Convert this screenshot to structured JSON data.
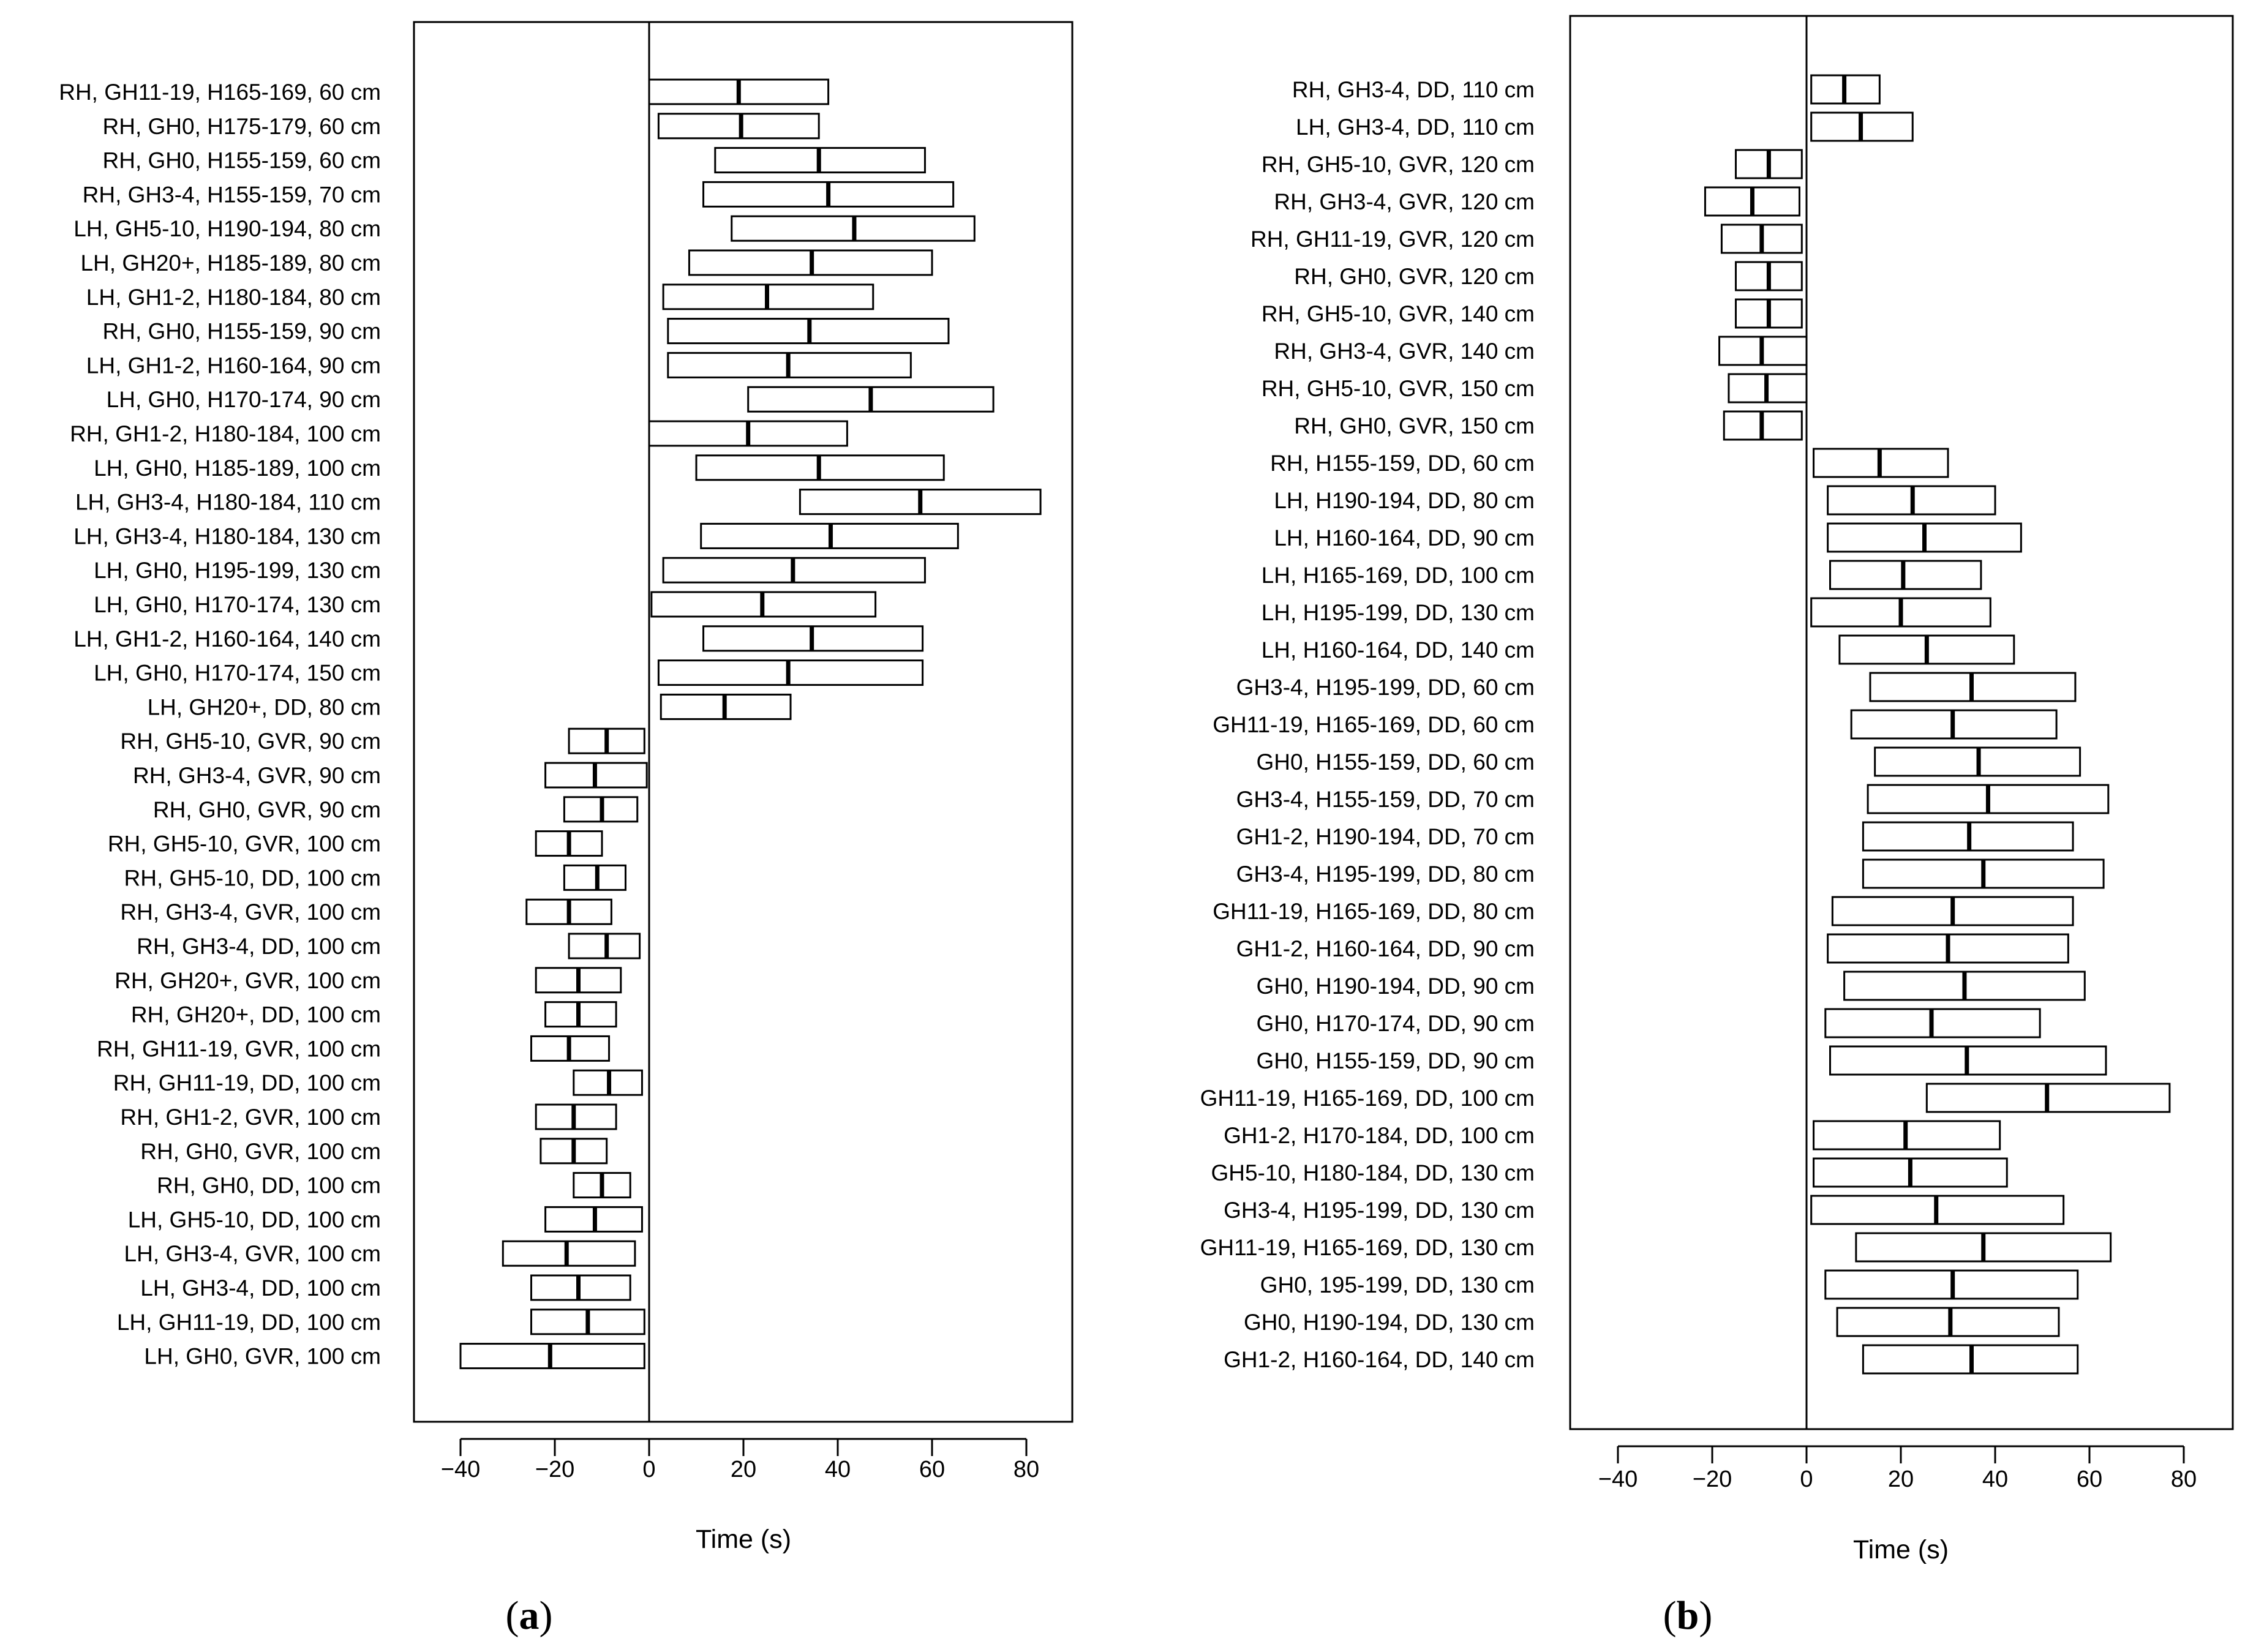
{
  "chart_data": [
    {
      "id": "a",
      "type": "boxplot",
      "panel_label": {
        "open": "(",
        "letter": "a",
        "close": ")"
      },
      "xlabel": "Time (s)",
      "ylabel": "",
      "xlim": [
        -50,
        90
      ],
      "xticks": [
        -40,
        -20,
        0,
        20,
        40,
        60,
        80
      ],
      "reference_line_x": 0,
      "categories": [
        "RH, GH11-19, H165-169, 60 cm",
        "RH, GH0, H175-179, 60 cm",
        "RH, GH0, H155-159, 60 cm",
        "RH, GH3-4, H155-159, 70 cm",
        "LH, GH5-10, H190-194, 80 cm",
        "LH, GH20+, H185-189, 80 cm",
        "LH, GH1-2, H180-184, 80 cm",
        "RH, GH0, H155-159, 90 cm",
        "LH, GH1-2, H160-164, 90 cm",
        "LH, GH0, H170-174, 90 cm",
        "RH, GH1-2, H180-184, 100 cm",
        "LH, GH0, H185-189, 100 cm",
        "LH, GH3-4, H180-184, 110 cm",
        "LH, GH3-4, H180-184, 130 cm",
        "LH, GH0, H195-199, 130 cm",
        "LH, GH0, H170-174, 130 cm",
        "LH, GH1-2, H160-164, 140 cm",
        "LH, GH0, H170-174, 150 cm",
        "LH, GH20+, DD, 80 cm",
        "RH, GH5-10, GVR, 90 cm",
        "RH, GH3-4, GVR, 90 cm",
        "RH, GH0, GVR, 90 cm",
        "RH, GH5-10, GVR, 100 cm",
        "RH, GH5-10, DD, 100 cm",
        "RH, GH3-4, GVR, 100 cm",
        "RH, GH3-4, DD, 100 cm",
        "RH, GH20+, GVR, 100 cm",
        "RH, GH20+, DD, 100 cm",
        "RH, GH11-19, GVR, 100 cm",
        "RH, GH11-19, DD, 100 cm",
        "RH, GH1-2, GVR, 100 cm",
        "RH, GH0, GVR, 100 cm",
        "RH, GH0, DD, 100 cm",
        "LH, GH5-10, DD, 100 cm",
        "LH, GH3-4, GVR, 100 cm",
        "LH, GH3-4, DD, 100 cm",
        "LH, GH11-19, DD, 100 cm",
        "LH, GH0, GVR, 100 cm"
      ],
      "series": [
        {
          "name": "interval",
          "low": [
            0,
            2,
            14,
            11.5,
            17.5,
            8.5,
            3,
            4,
            4,
            21,
            0,
            10,
            32,
            11,
            3,
            0.5,
            11.5,
            2,
            2.5,
            -17,
            -22,
            -18,
            -24,
            -18,
            -26,
            -17,
            -24,
            -22,
            -25,
            -16,
            -24,
            -23,
            -16,
            -22,
            -31,
            -25,
            -25,
            -40
          ],
          "median": [
            19,
            19.5,
            36,
            38,
            43.5,
            34.5,
            25,
            34,
            29.5,
            47,
            21,
            36,
            57.5,
            38.5,
            30.5,
            24,
            34.5,
            29.5,
            16,
            -9,
            -11.5,
            -10,
            -17,
            -11,
            -17,
            -9,
            -15,
            -15,
            -17,
            -8.5,
            -16,
            -16,
            -10,
            -11.5,
            -17.5,
            -15,
            -13,
            -21
          ],
          "high": [
            38,
            36,
            58.5,
            64.5,
            69,
            60,
            47.5,
            63.5,
            55.5,
            73,
            42,
            62.5,
            83,
            65.5,
            58.5,
            48,
            58,
            58,
            30,
            -1,
            -0.5,
            -2.5,
            -10,
            -5,
            -8,
            -2,
            -6,
            -7,
            -8.5,
            -1.5,
            -7,
            -9,
            -4,
            -1.5,
            -3,
            -4,
            -1,
            -1
          ]
        }
      ]
    },
    {
      "id": "b",
      "type": "boxplot",
      "panel_label": {
        "open": "(",
        "letter": "b",
        "close": ")"
      },
      "xlabel": "Time (s)",
      "ylabel": "",
      "xlim": [
        -50,
        90
      ],
      "xticks": [
        -40,
        -20,
        0,
        20,
        40,
        60,
        80
      ],
      "reference_line_x": 0,
      "categories": [
        "RH, GH3-4, DD, 110 cm",
        "LH, GH3-4, DD, 110 cm",
        "RH, GH5-10, GVR, 120 cm",
        "RH, GH3-4, GVR, 120 cm",
        "RH, GH11-19, GVR, 120 cm",
        "RH, GH0, GVR, 120 cm",
        "RH, GH5-10, GVR, 140 cm",
        "RH, GH3-4, GVR, 140 cm",
        "RH, GH5-10, GVR, 150 cm",
        "RH, GH0, GVR, 150 cm",
        "RH, H155-159, DD, 60 cm",
        "LH, H190-194, DD, 80 cm",
        "LH, H160-164, DD, 90 cm",
        "LH, H165-169, DD, 100 cm",
        "LH, H195-199, DD, 130 cm",
        "LH, H160-164, DD, 140 cm",
        "GH3-4, H195-199, DD, 60 cm",
        "GH11-19, H165-169, DD, 60 cm",
        "GH0, H155-159, DD, 60 cm",
        "GH3-4, H155-159, DD, 70 cm",
        "GH1-2, H190-194, DD, 70 cm",
        "GH3-4, H195-199, DD, 80 cm",
        "GH11-19, H165-169, DD, 80 cm",
        "GH1-2, H160-164, DD, 90 cm",
        "GH0, H190-194, DD, 90 cm",
        "GH0, H170-174, DD, 90 cm",
        "GH0, H155-159, DD, 90 cm",
        "GH11-19, H165-169, DD, 100 cm",
        "GH1-2, H170-184, DD, 100 cm",
        "GH5-10, H180-184, DD, 130 cm",
        "GH3-4, H195-199, DD, 130 cm",
        "GH11-19, H165-169, DD, 130 cm",
        "GH0, 195-199, DD, 130 cm",
        "GH0, H190-194, DD, 130 cm",
        "GH1-2, H160-164, DD, 140 cm"
      ],
      "series": [
        {
          "name": "interval",
          "low": [
            1,
            1,
            -15,
            -21.5,
            -18,
            -15,
            -15,
            -18.5,
            -16.5,
            -17.5,
            1.5,
            4.5,
            4.5,
            5,
            1,
            7,
            13.5,
            9.5,
            14.5,
            13,
            12,
            12,
            5.5,
            4.5,
            8,
            4,
            5,
            25.5,
            1.5,
            1.5,
            1,
            10.5,
            4,
            6.5,
            12
          ],
          "median": [
            8,
            11.5,
            -8,
            -11.5,
            -9.5,
            -8,
            -8,
            -9.5,
            -8.5,
            -9.5,
            15.5,
            22.5,
            25,
            20.5,
            20,
            25.5,
            35,
            31,
            36.5,
            38.5,
            34.5,
            37.5,
            31,
            30,
            33.5,
            26.5,
            34,
            51,
            21,
            22,
            27.5,
            37.5,
            31,
            30.5,
            35
          ],
          "high": [
            15.5,
            22.5,
            -1,
            -1.5,
            -1,
            -1,
            -1,
            0,
            0,
            -1,
            30,
            40,
            45.5,
            37,
            39,
            44,
            57,
            53,
            58,
            64,
            56.5,
            63,
            56.5,
            55.5,
            59,
            49.5,
            63.5,
            77,
            41,
            42.5,
            54.5,
            64.5,
            57.5,
            53.5,
            57.5
          ]
        }
      ]
    }
  ]
}
